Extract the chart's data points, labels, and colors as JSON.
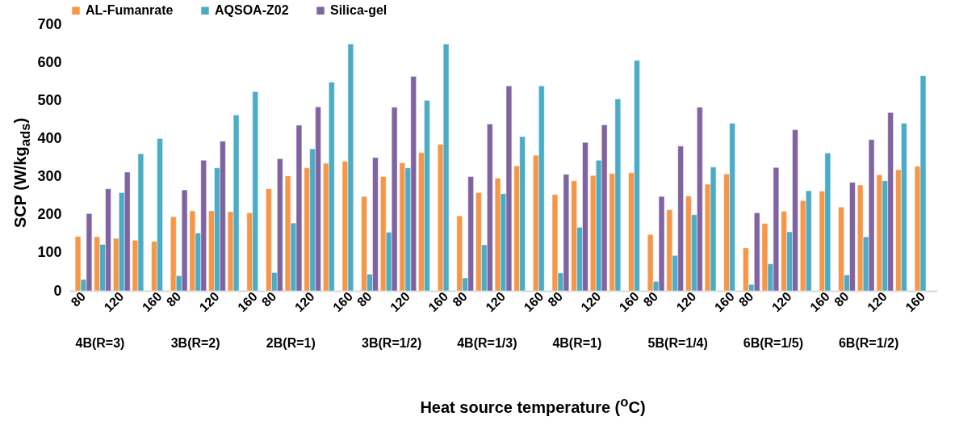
{
  "chart_data": {
    "type": "bar",
    "xlabel": "Heat source temperature ($^{o}$C)",
    "ylabel": "SCP (W/kg$_{ads}$)",
    "categories": [
      "80",
      null,
      "120",
      null,
      "160",
      "80",
      null,
      "120",
      null,
      "160",
      "80",
      null,
      "120",
      null,
      "160",
      "80",
      null,
      "120",
      null,
      "160",
      "80",
      null,
      "120",
      null,
      "160",
      "80",
      null,
      "120",
      null,
      "160",
      "80",
      null,
      "120",
      null,
      "160",
      "80",
      null,
      "120",
      null,
      "160",
      "80",
      null,
      "120",
      null,
      "160"
    ],
    "series": [
      {
        "name": "AL-Fumanrate",
        "color": "#f79646",
        "values": [
          143,
          142,
          138,
          133,
          130,
          195,
          210,
          210,
          208,
          205,
          268,
          302,
          323,
          335,
          340,
          248,
          300,
          336,
          363,
          385,
          197,
          258,
          296,
          328,
          356,
          253,
          289,
          303,
          308,
          310,
          148,
          213,
          249,
          280,
          307,
          113,
          177,
          209,
          237,
          262,
          220,
          278,
          305,
          318,
          327
        ]
      },
      {
        "name": "AQSOA-Z02",
        "color": "#4bacc6",
        "values": [
          30,
          122,
          258,
          360,
          400,
          40,
          152,
          323,
          462,
          523,
          48,
          178,
          373,
          548,
          648,
          44,
          154,
          323,
          500,
          648,
          34,
          121,
          255,
          405,
          538,
          47,
          167,
          343,
          504,
          605,
          25,
          93,
          200,
          325,
          440,
          17,
          71,
          155,
          263,
          362,
          42,
          142,
          289,
          440,
          565
        ]
      },
      {
        "name": "Silica-gel",
        "color": "#8064a2",
        "values": [
          203,
          268,
          312,
          null,
          null,
          265,
          343,
          393,
          null,
          null,
          347,
          435,
          483,
          null,
          null,
          350,
          482,
          563,
          null,
          null,
          300,
          438,
          538,
          null,
          null,
          306,
          390,
          436,
          null,
          null,
          248,
          380,
          482,
          null,
          null,
          205,
          324,
          423,
          null,
          null,
          285,
          397,
          468,
          null,
          null
        ]
      }
    ],
    "annotations": [
      "4B(R=3)",
      "3B(R=2)",
      "2B(R=1)",
      "3B(R=1/2)",
      "4B(R=1/3)",
      "4B(R=1)",
      "5B(R=1/4)",
      "6B(R=1/5)",
      "6B(R=1/2)"
    ],
    "ylim": [
      0,
      700
    ],
    "yticks": [
      0,
      100,
      200,
      300,
      400,
      500,
      600,
      700
    ],
    "grid": false,
    "legend": "top"
  }
}
